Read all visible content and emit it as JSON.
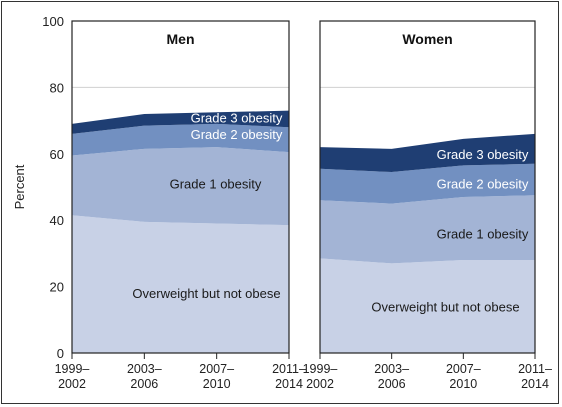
{
  "colors": {
    "overweight": "#c8d1e6",
    "grade1": "#a3b4d5",
    "grade2": "#7290c1",
    "grade3": "#1f3e73",
    "frame": "#222222",
    "gridline": "#d0d0d0"
  },
  "chart_data": {
    "type": "area",
    "stacked": true,
    "ylabel": "Percent",
    "ylim": [
      0,
      100
    ],
    "y_ticks": [
      0,
      20,
      40,
      60,
      80,
      100
    ],
    "categories": [
      "1999–2002",
      "2003–2006",
      "2007–2010",
      "2011–2014"
    ],
    "panels": [
      {
        "title": "Men",
        "series": [
          {
            "name": "Overweight but not obese",
            "key": "overweight",
            "values": [
              41.5,
              39.5,
              39.0,
              38.5
            ]
          },
          {
            "name": "Grade 1 obesity",
            "key": "grade1",
            "values": [
              18.0,
              22.0,
              23.0,
              22.0
            ]
          },
          {
            "name": "Grade 2 obesity",
            "key": "grade2",
            "values": [
              6.5,
              7.0,
              7.0,
              7.5
            ]
          },
          {
            "name": "Grade 3 obesity",
            "key": "grade3",
            "values": [
              3.0,
              3.5,
              3.5,
              5.0
            ]
          }
        ]
      },
      {
        "title": "Women",
        "series": [
          {
            "name": "Overweight but not obese",
            "key": "overweight",
            "values": [
              28.5,
              27.0,
              28.0,
              28.0
            ]
          },
          {
            "name": "Grade 1 obesity",
            "key": "grade1",
            "values": [
              17.5,
              18.0,
              19.0,
              19.5
            ]
          },
          {
            "name": "Grade 2 obesity",
            "key": "grade2",
            "values": [
              9.5,
              9.5,
              9.5,
              9.5
            ]
          },
          {
            "name": "Grade 3 obesity",
            "key": "grade3",
            "values": [
              6.5,
              7.0,
              8.0,
              9.0
            ]
          }
        ]
      }
    ]
  }
}
